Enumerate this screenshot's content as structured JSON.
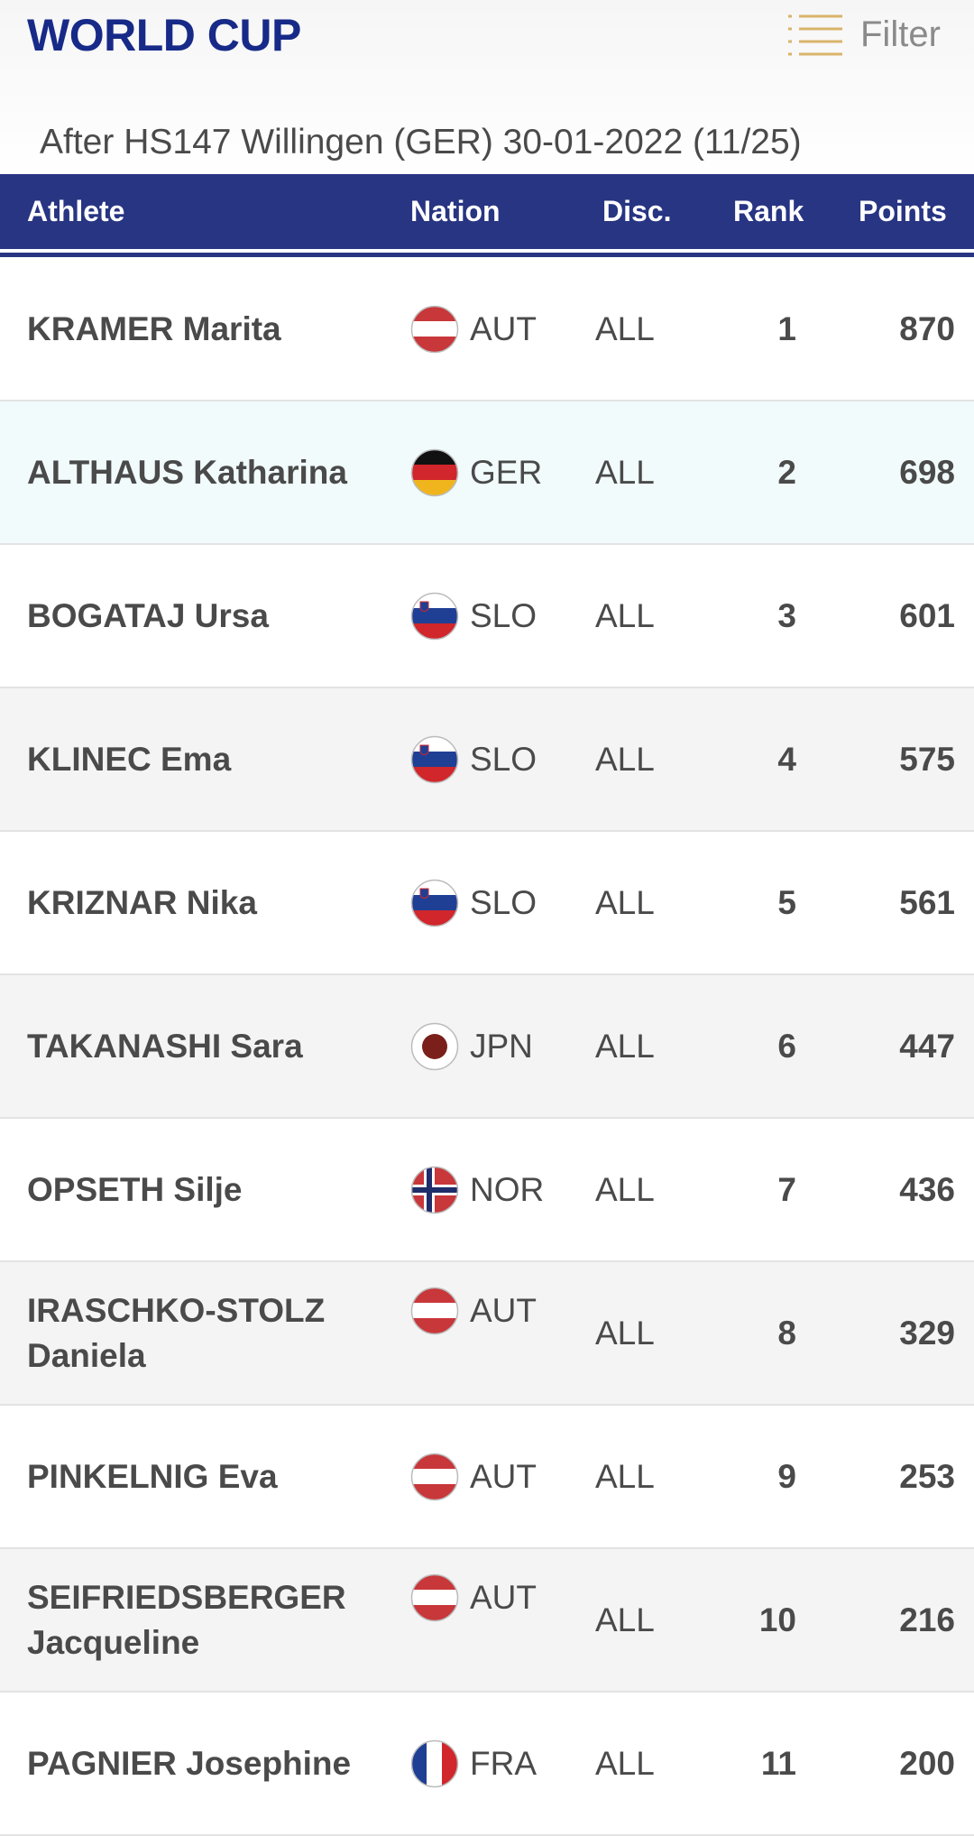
{
  "header": {
    "title": "WORLD CUP",
    "filter": "Filter",
    "subtitle": "After HS147 Willingen (GER) 30-01-2022 (11/25)"
  },
  "table": {
    "columns": [
      "Athlete",
      "Nation",
      "Disc.",
      "Rank",
      "Points"
    ],
    "rows": [
      [
        "KRAMER Marita",
        "AUT",
        "ALL",
        1,
        870
      ],
      [
        "ALTHAUS Katharina",
        "GER",
        "ALL",
        2,
        698
      ],
      [
        "BOGATAJ Ursa",
        "SLO",
        "ALL",
        3,
        601
      ],
      [
        "KLINEC Ema",
        "SLO",
        "ALL",
        4,
        575
      ],
      [
        "KRIZNAR Nika",
        "SLO",
        "ALL",
        5,
        561
      ],
      [
        "TAKANASHI Sara",
        "JPN",
        "ALL",
        6,
        447
      ],
      [
        "OPSETH Silje",
        "NOR",
        "ALL",
        7,
        436
      ],
      [
        "IRASCHKO-STOLZ Daniela",
        "AUT",
        "ALL",
        8,
        329
      ],
      [
        "PINKELNIG Eva",
        "AUT",
        "ALL",
        9,
        253
      ],
      [
        "SEIFRIEDSBERGER Jacqueline",
        "AUT",
        "ALL",
        10,
        216
      ],
      [
        "PAGNIER Josephine",
        "FRA",
        "ALL",
        11,
        200
      ]
    ]
  }
}
